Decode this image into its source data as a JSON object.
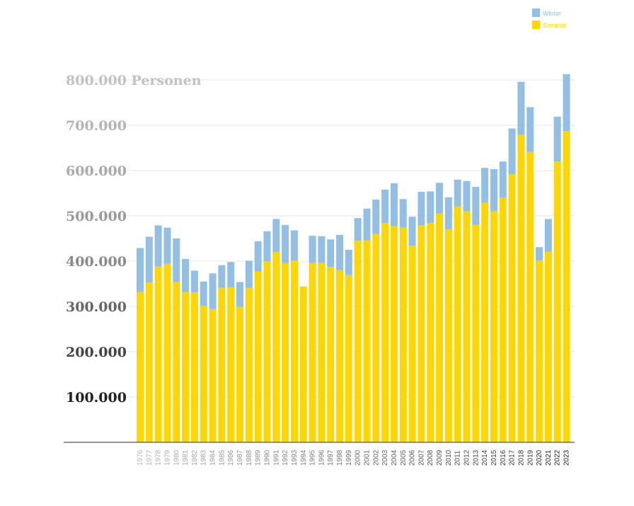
{
  "chart_data": {
    "type": "bar",
    "stacked": true,
    "categories": [
      "1976",
      "1977",
      "1978",
      "1979",
      "1980",
      "1981",
      "1982",
      "1983",
      "1984",
      "1985",
      "1986",
      "1987",
      "1988",
      "1989",
      "1990",
      "1991",
      "1992",
      "1993",
      "1994",
      "1995",
      "1996",
      "1997",
      "1998",
      "1999",
      "2000",
      "2001",
      "2002",
      "2003",
      "2004",
      "2005",
      "2006",
      "2007",
      "2008",
      "2009",
      "2010",
      "2011",
      "2012",
      "2013",
      "2014",
      "2015",
      "2016",
      "2017",
      "2018",
      "2019",
      "2020",
      "2021",
      "2022",
      "2023"
    ],
    "series": [
      {
        "name": "Sommer",
        "color": "#FFD700",
        "values": [
          332000,
          353000,
          388000,
          394000,
          354000,
          332000,
          331000,
          301000,
          294000,
          341000,
          342000,
          299000,
          341000,
          377000,
          400000,
          420000,
          396000,
          401000,
          344000,
          396000,
          396000,
          387000,
          380000,
          369000,
          445000,
          446000,
          460000,
          484000,
          477000,
          474000,
          434000,
          479000,
          484000,
          505000,
          470000,
          521000,
          510000,
          480000,
          529000,
          510000,
          540000,
          592000,
          679000,
          641000,
          401000,
          421000,
          620000,
          687000
        ]
      },
      {
        "name": "Winter",
        "color": "#92BFE3",
        "values": [
          97000,
          101000,
          91000,
          80000,
          96000,
          73000,
          48000,
          54000,
          79000,
          50000,
          56000,
          55000,
          60000,
          67000,
          66000,
          73000,
          84000,
          67000,
          0,
          60000,
          59000,
          61000,
          78000,
          56000,
          50000,
          70000,
          76000,
          74000,
          95000,
          63000,
          64000,
          74000,
          70000,
          68000,
          71000,
          59000,
          67000,
          84000,
          77000,
          93000,
          80000,
          101000,
          117000,
          99000,
          30000,
          72000,
          99000,
          126000
        ]
      }
    ],
    "y_ticks": [
      {
        "value": 100000,
        "label": "100.000",
        "color": "#222222"
      },
      {
        "value": 200000,
        "label": "200.000",
        "color": "#444444"
      },
      {
        "value": 300000,
        "label": "300.000",
        "color": "#666666"
      },
      {
        "value": 400000,
        "label": "400.000",
        "color": "#8a8a8a"
      },
      {
        "value": 500000,
        "label": "500.000",
        "color": "#9a9a9a"
      },
      {
        "value": 600000,
        "label": "600.000",
        "color": "#aaaaaa"
      },
      {
        "value": 700000,
        "label": "700.000",
        "color": "#b4b4b4"
      },
      {
        "value": 800000,
        "label": "800.000 Personen",
        "color": "#c2c2c2"
      }
    ],
    "ylim": [
      0,
      800000
    ],
    "grid": true,
    "legend_position": "top-right",
    "xlabel_color_start": "#b8b8b8",
    "xlabel_color_end": "#222222"
  }
}
